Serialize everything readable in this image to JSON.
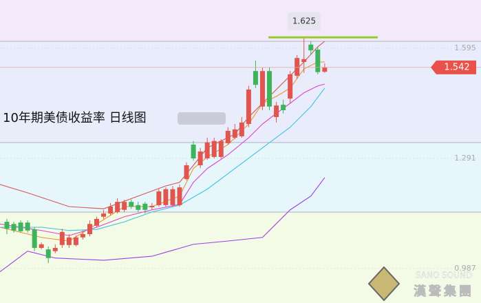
{
  "chart_data": {
    "type": "candlestick",
    "title": "10年期美债收益率  日线图",
    "watermark": {
      "latin": "SANO SOUND",
      "chinese": "漢聲集團"
    },
    "up_color": "#e0564f",
    "down_color": "#3fb35a",
    "open": [
      1.116,
      1.11,
      1.114,
      1.114,
      1.095,
      1.044,
      1.04,
      1.035,
      1.052,
      1.052,
      1.052,
      1.073,
      1.082,
      1.105,
      1.13,
      1.139,
      1.143,
      1.149,
      1.171,
      1.162,
      1.166,
      1.156,
      1.162,
      1.162,
      1.162,
      1.162,
      1.234,
      1.329,
      1.272,
      1.291,
      1.295,
      1.295,
      1.333,
      1.348,
      1.352,
      1.386,
      1.532,
      1.434,
      1.532,
      1.405,
      1.439,
      1.456,
      1.519,
      1.557,
      1.605,
      1.591,
      1.53
    ],
    "high": [
      1.124,
      1.116,
      1.12,
      1.12,
      1.101,
      1.059,
      1.048,
      1.054,
      1.097,
      1.082,
      1.078,
      1.092,
      1.12,
      1.13,
      1.149,
      1.168,
      1.181,
      1.177,
      1.177,
      1.171,
      1.171,
      1.168,
      1.206,
      1.211,
      1.215,
      1.219,
      1.28,
      1.339,
      1.32,
      1.348,
      1.348,
      1.344,
      1.377,
      1.386,
      1.405,
      1.491,
      1.561,
      1.542,
      1.542,
      1.447,
      1.453,
      1.532,
      1.576,
      1.625,
      1.614,
      1.599,
      1.553
    ],
    "low": [
      1.082,
      1.086,
      1.086,
      1.086,
      1.035,
      1.04,
      1.002,
      1.029,
      1.044,
      1.044,
      1.048,
      1.067,
      1.076,
      1.101,
      1.124,
      1.133,
      1.139,
      1.143,
      1.152,
      1.143,
      1.139,
      1.149,
      1.158,
      1.158,
      1.158,
      1.158,
      1.23,
      1.285,
      1.264,
      1.287,
      1.291,
      1.291,
      1.329,
      1.344,
      1.348,
      1.377,
      1.485,
      1.424,
      1.424,
      1.39,
      1.415,
      1.443,
      1.51,
      1.527,
      1.576,
      1.523,
      1.527
    ],
    "close": [
      1.097,
      1.092,
      1.09,
      1.092,
      1.044,
      1.054,
      1.016,
      1.044,
      1.088,
      1.073,
      1.073,
      1.082,
      1.11,
      1.124,
      1.139,
      1.158,
      1.171,
      1.171,
      1.158,
      1.149,
      1.149,
      1.16,
      1.2,
      1.206,
      1.206,
      1.211,
      1.272,
      1.291,
      1.31,
      1.335,
      1.339,
      1.339,
      1.367,
      1.371,
      1.39,
      1.481,
      1.494,
      1.532,
      1.434,
      1.437,
      1.424,
      1.523,
      1.568,
      1.565,
      1.589,
      1.529,
      1.542
    ],
    "lines": [
      {
        "color": "#d9534f",
        "x": [
          -1,
          3,
          9,
          14,
          19,
          23,
          25,
          27,
          29,
          33,
          35,
          37,
          39,
          41,
          43,
          45,
          46
        ],
        "values": [
          1.219,
          1.196,
          1.158,
          1.152,
          1.187,
          1.215,
          1.225,
          1.272,
          1.32,
          1.358,
          1.405,
          1.443,
          1.481,
          1.519,
          1.557,
          1.599,
          1.614
        ]
      },
      {
        "color": "#f0922e",
        "x": [
          -1,
          5,
          9,
          13,
          17,
          21,
          25,
          27,
          29,
          32,
          35,
          37,
          39,
          41,
          43,
          45,
          46
        ],
        "values": [
          1.101,
          1.073,
          1.063,
          1.11,
          1.158,
          1.158,
          1.187,
          1.263,
          1.295,
          1.329,
          1.386,
          1.443,
          1.462,
          1.485,
          1.538,
          1.557,
          1.557
        ]
      },
      {
        "color": "#e23fd0",
        "x": [
          -1,
          5,
          9,
          13,
          17,
          21,
          25,
          27,
          29,
          32,
          35,
          37,
          39,
          41,
          43,
          45,
          46
        ],
        "values": [
          1.11,
          1.092,
          1.078,
          1.101,
          1.13,
          1.149,
          1.164,
          1.225,
          1.263,
          1.301,
          1.348,
          1.386,
          1.415,
          1.443,
          1.472,
          1.491,
          1.496
        ]
      },
      {
        "color": "#3cc3e0",
        "x": [
          -1,
          5,
          9,
          13,
          17,
          21,
          25,
          29,
          33,
          37,
          41,
          44,
          46
        ],
        "values": [
          1.101,
          1.101,
          1.092,
          1.095,
          1.116,
          1.143,
          1.162,
          1.206,
          1.263,
          1.32,
          1.377,
          1.434,
          1.485
        ]
      },
      {
        "color": "#9b3fe0",
        "x": [
          -1,
          3,
          7,
          14,
          21,
          27,
          32,
          37,
          41,
          44,
          46
        ],
        "values": [
          0.978,
          1.035,
          1.016,
          1.01,
          1.021,
          1.054,
          1.063,
          1.073,
          1.149,
          1.187,
          1.238
        ]
      }
    ],
    "high_marker": 1.625,
    "last_price": 1.542,
    "ylim": [
      0.892,
      1.728
    ],
    "yticks": [
      1.595,
      1.291,
      0.987
    ]
  }
}
